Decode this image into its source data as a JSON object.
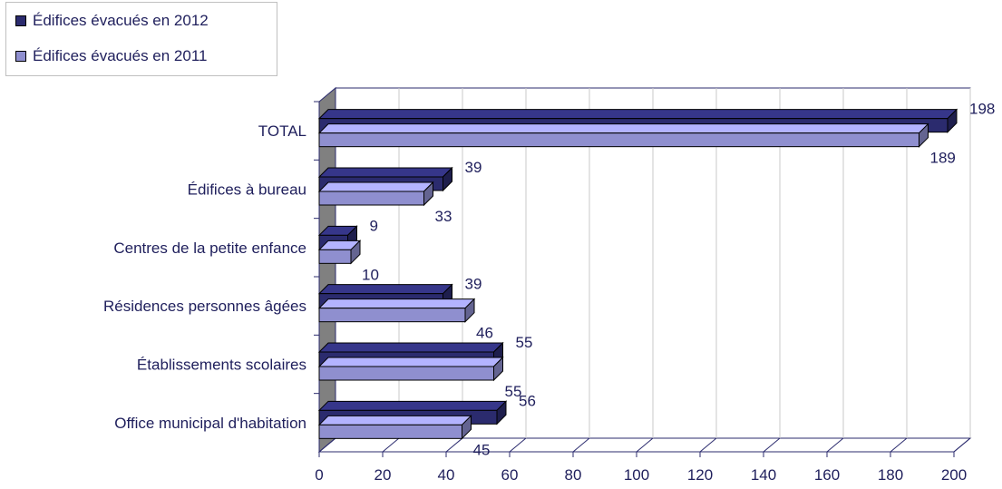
{
  "chart_data": {
    "type": "bar",
    "orientation": "horizontal",
    "three_d": true,
    "categories": [
      "TOTAL",
      "Édifices à bureau",
      "Centres de la petite enfance",
      "Résidences personnes âgées",
      "Établissements scolaires",
      "Office municipal d'habitation"
    ],
    "series": [
      {
        "name": "Édifices évacués en 2012",
        "values": [
          198,
          39,
          9,
          39,
          55,
          56
        ],
        "color": "#2b2b6e"
      },
      {
        "name": "Édifices évacués en 2011",
        "values": [
          189,
          33,
          10,
          46,
          55,
          45
        ],
        "color": "#8f8fcf"
      }
    ],
    "xlim": [
      0,
      200
    ],
    "xticks": [
      0,
      20,
      40,
      60,
      80,
      100,
      120,
      140,
      160,
      180,
      200
    ],
    "grid": true,
    "legend_position": "top-left"
  }
}
